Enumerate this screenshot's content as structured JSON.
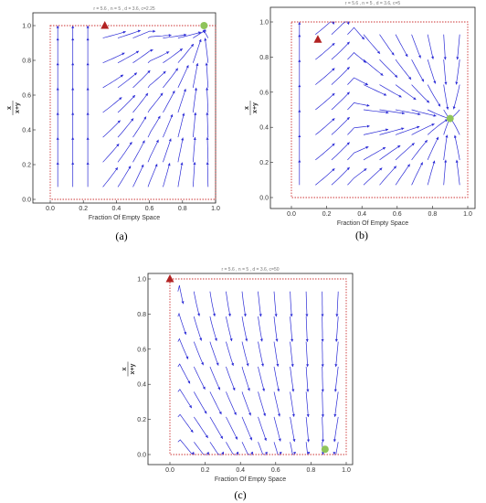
{
  "figure": {
    "panels": [
      {
        "id": "a",
        "caption": "(a)",
        "params_text": "r = 5.6 , n = 5 , d = 3.6, c=2.25",
        "xlabel": "Fraction Of Empty Space",
        "ylabel_num": "x",
        "ylabel_den": "x+y",
        "x_ticks": [
          "0.0",
          "0.2",
          "0.4",
          "0.6",
          "0.8",
          "1.0"
        ],
        "y_ticks": [
          "0.0",
          "0.2",
          "0.4",
          "0.6",
          "0.8",
          "1.0"
        ],
        "marker_triangle": {
          "x": 0.33,
          "y": 1.0,
          "color": "#b22222"
        },
        "marker_circle": {
          "x": 0.93,
          "y": 1.0,
          "color": "#8fc45a"
        },
        "stream_color": "#2a2ad6",
        "boundary_color": "#cc3333"
      },
      {
        "id": "b",
        "caption": "(b)",
        "params_text": "r = 5.6 , n = 5 , d = 3.6, c=5",
        "xlabel": "Fraction Of Empty Space",
        "ylabel_num": "x",
        "ylabel_den": "x+y",
        "x_ticks": [
          "0.0",
          "0.2",
          "0.4",
          "0.6",
          "0.8",
          "1.0"
        ],
        "y_ticks": [
          "0.0",
          "0.2",
          "0.4",
          "0.6",
          "0.8",
          "1.0"
        ],
        "marker_triangle": {
          "x": 0.15,
          "y": 0.9,
          "color": "#b22222"
        },
        "marker_circle": {
          "x": 0.9,
          "y": 0.45,
          "color": "#8fc45a"
        },
        "stream_color": "#2a2ad6",
        "boundary_color": "#cc3333"
      },
      {
        "id": "c",
        "caption": "(c)",
        "params_text": "r = 5.6 , n = 5 , d = 3.6, c=50",
        "xlabel": "Fraction Of Empty Space",
        "ylabel_num": "x",
        "ylabel_den": "x+y",
        "x_ticks": [
          "0.0",
          "0.2",
          "0.4",
          "0.6",
          "0.8",
          "1.0"
        ],
        "y_ticks": [
          "0.0",
          "0.2",
          "0.4",
          "0.6",
          "0.8",
          "1.0"
        ],
        "marker_triangle": {
          "x": 0.0,
          "y": 1.0,
          "color": "#b22222"
        },
        "marker_circle": {
          "x": 0.88,
          "y": 0.03,
          "color": "#8fc45a"
        },
        "stream_color": "#2a2ad6",
        "boundary_color": "#cc3333"
      }
    ]
  }
}
